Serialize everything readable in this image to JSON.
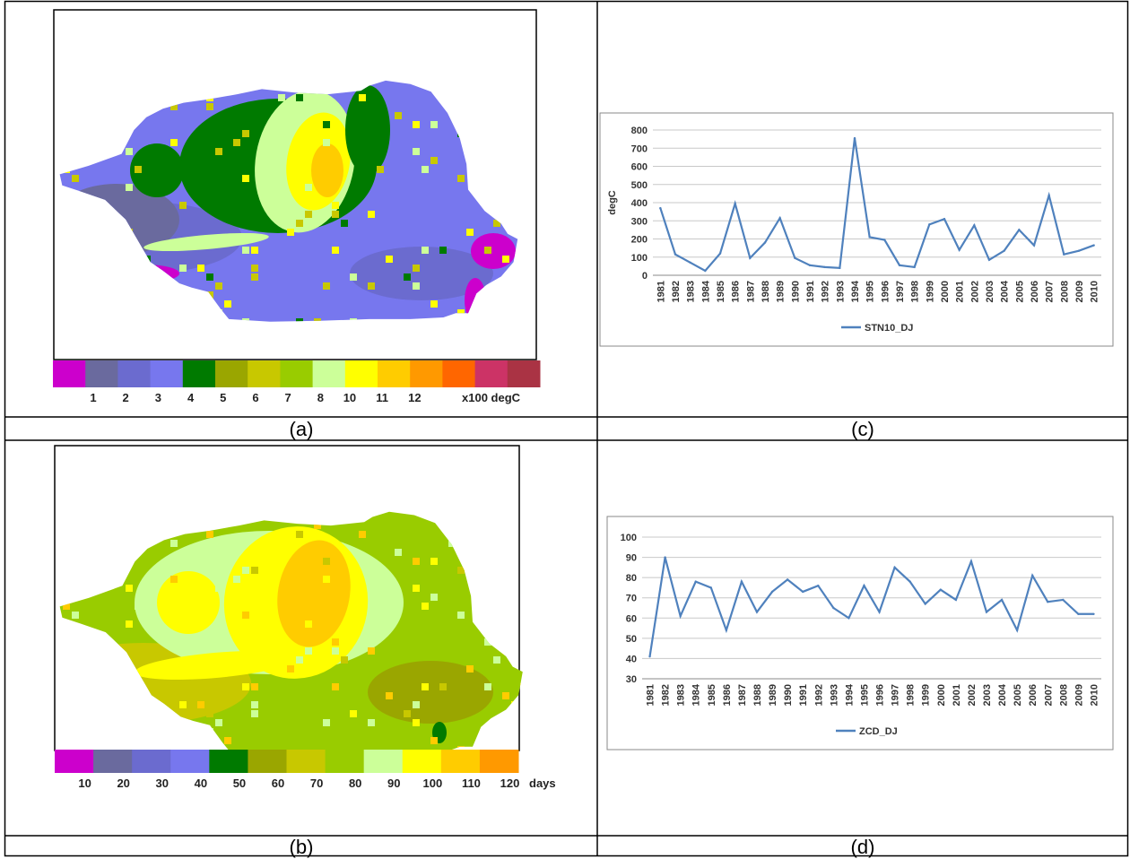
{
  "captions": {
    "a": "(a)",
    "b": "(b)",
    "c": "(c)",
    "d": "(d)"
  },
  "map_a": {
    "legend_colors": [
      "#cc00cc",
      "#6a6a9e",
      "#6b6bcf",
      "#7777ee",
      "#007a00",
      "#9aa600",
      "#c8c800",
      "#99cc00",
      "#ccff99",
      "#ffff00",
      "#ffcc00",
      "#ff9900",
      "#ff6600",
      "#cc3366",
      "#aa3344"
    ],
    "legend_labels": [
      "1",
      "2",
      "3",
      "4",
      "5",
      "6",
      "7",
      "8",
      "10",
      "11",
      "12"
    ],
    "unit": "x100 degC"
  },
  "map_b": {
    "legend_colors": [
      "#cc00cc",
      "#6a6a9e",
      "#6b6bcf",
      "#7777ee",
      "#007a00",
      "#9aa600",
      "#c8c800",
      "#99cc00",
      "#ccff99",
      "#ffff00",
      "#ffcc00",
      "#ff9900"
    ],
    "legend_labels": [
      "10",
      "20",
      "30",
      "40",
      "50",
      "60",
      "70",
      "80",
      "90",
      "100",
      "110",
      "120"
    ],
    "unit": "days"
  },
  "chart_data": [
    {
      "type": "line",
      "ylabel": "degC",
      "ylim": [
        0,
        800
      ],
      "yticks": [
        0,
        100,
        200,
        300,
        400,
        500,
        600,
        700,
        800
      ],
      "grid": true,
      "legend_position": "bottom",
      "categories": [
        "1981",
        "1982",
        "1983",
        "1984",
        "1985",
        "1986",
        "1987",
        "1988",
        "1989",
        "1990",
        "1991",
        "1992",
        "1993",
        "1994",
        "1995",
        "1996",
        "1997",
        "1998",
        "1999",
        "2000",
        "2001",
        "2002",
        "2003",
        "2004",
        "2005",
        "2006",
        "2007",
        "2008",
        "2009",
        "2010"
      ],
      "series": [
        {
          "name": "STN10_DJ",
          "color": "#4f81bd",
          "values": [
            370,
            115,
            70,
            25,
            120,
            395,
            95,
            180,
            315,
            95,
            55,
            45,
            40,
            755,
            210,
            195,
            55,
            45,
            280,
            310,
            140,
            275,
            85,
            135,
            250,
            165,
            440,
            115,
            135,
            165
          ]
        }
      ]
    },
    {
      "type": "line",
      "ylabel": "",
      "ylim": [
        30,
        100
      ],
      "yticks": [
        30,
        40,
        50,
        60,
        70,
        80,
        90,
        100
      ],
      "grid": true,
      "legend_position": "bottom",
      "categories": [
        "1981",
        "1982",
        "1983",
        "1984",
        "1985",
        "1986",
        "1987",
        "1988",
        "1989",
        "1990",
        "1991",
        "1992",
        "1993",
        "1994",
        "1995",
        "1996",
        "1997",
        "1998",
        "1999",
        "2000",
        "2001",
        "2002",
        "2003",
        "2004",
        "2005",
        "2006",
        "2007",
        "2008",
        "2009",
        "2010"
      ],
      "series": [
        {
          "name": "ZCD_DJ",
          "color": "#4f81bd",
          "values": [
            41,
            90,
            61,
            78,
            75,
            54,
            78,
            63,
            73,
            79,
            73,
            76,
            65,
            60,
            76,
            63,
            85,
            78,
            67,
            74,
            69,
            88,
            63,
            69,
            54,
            81,
            68,
            69,
            62,
            62
          ]
        }
      ]
    }
  ]
}
